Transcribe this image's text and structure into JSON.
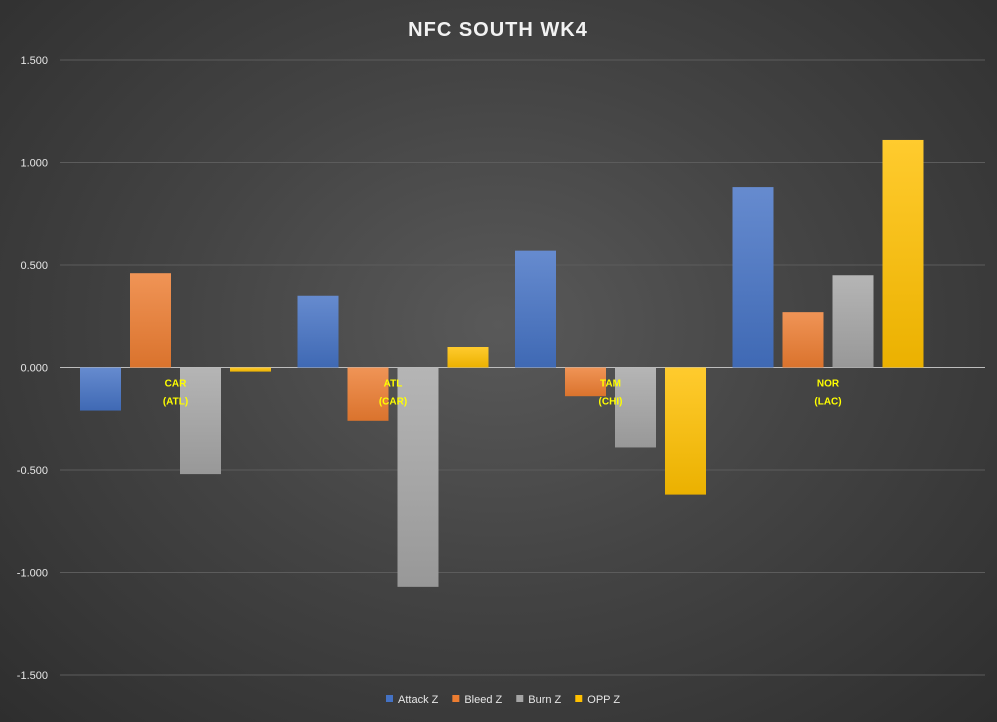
{
  "chart_data": {
    "type": "bar",
    "title": "NFC SOUTH WK4",
    "xlabel": "",
    "ylabel": "",
    "ylim": [
      -1.5,
      1.5
    ],
    "yticks": [
      "1.500",
      "1.000",
      "0.500",
      "0.000",
      "-0.500",
      "-1.000",
      "-1.500"
    ],
    "grid": true,
    "legend_position": "bottom",
    "categories": [
      {
        "line1": "CAR",
        "line2": "(ATL)"
      },
      {
        "line1": "ATL",
        "line2": "(CAR)"
      },
      {
        "line1": "TAM",
        "line2": "(CHI)"
      },
      {
        "line1": "NOR",
        "line2": "(LAC)"
      }
    ],
    "series": [
      {
        "name": "Attack Z",
        "color": "#4472c4",
        "values": [
          -0.21,
          0.35,
          0.57,
          0.88
        ]
      },
      {
        "name": "Bleed Z",
        "color": "#ed7d31",
        "values": [
          0.46,
          -0.26,
          -0.14,
          0.27
        ]
      },
      {
        "name": "Burn Z",
        "color": "#a5a5a5",
        "values": [
          -0.52,
          -1.07,
          -0.39,
          0.45
        ]
      },
      {
        "name": "OPP Z",
        "color": "#ffc000",
        "values": [
          -0.02,
          0.1,
          -0.62,
          1.11
        ]
      }
    ]
  }
}
